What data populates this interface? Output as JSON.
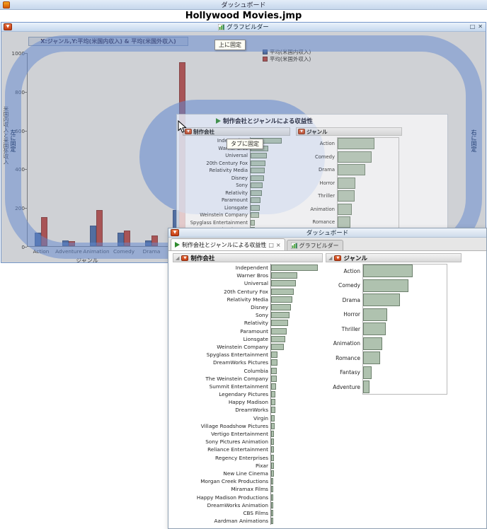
{
  "os": {
    "title": "ダッシュボード"
  },
  "document": {
    "title": "Hollywood Movies.jmp"
  },
  "graph_builder": {
    "window_title": "グラフビルダー",
    "buttons": {
      "maximize": "□",
      "close": "✕"
    }
  },
  "overlay": {
    "dock_top": "上に固定",
    "dock_tab": "タブに固定",
    "dock_left": "左に固定",
    "dock_right": "右に固定"
  },
  "dashboard": {
    "window_title": "ダッシュボード",
    "report_title": "制作会社とジャンルによる収益性",
    "tabs": [
      {
        "label": "制作会社とジャンルによる収益性",
        "active": true,
        "float_button": "□",
        "close_button": "×"
      },
      {
        "label": "グラフビルダー",
        "active": false
      }
    ]
  },
  "chart_data": [
    {
      "type": "bar",
      "title": "X:ジャンル,Y:平均(米国内収入) & 平均(米国外収入)",
      "categories": [
        "Action",
        "Adventure",
        "Animation",
        "Comedy",
        "Drama",
        "Fantasy"
      ],
      "series": [
        {
          "name": "平均(米国内収入)",
          "color": "#3e68b0",
          "border": "#2c4c8a",
          "values": [
            70,
            30,
            105,
            70,
            30,
            185
          ]
        },
        {
          "name": "平均(米国外収入)",
          "color": "#c4403c",
          "border": "#8f2b28",
          "values": [
            150,
            25,
            185,
            80,
            55,
            950
          ]
        }
      ],
      "xlabel": "ジャンル",
      "ylabel": "米国内収入と米国外収入",
      "ylim": [
        0,
        1000
      ],
      "yticks": [
        0,
        200,
        400,
        600,
        800,
        1000
      ],
      "legend_position": "top-center",
      "grid": false
    },
    {
      "type": "bar",
      "orientation": "horizontal",
      "title": "制作会社",
      "categories": [
        "Independent",
        "Warner Bros",
        "Universal",
        "20th Century Fox",
        "Relativity Media",
        "Disney",
        "Sony",
        "Relativity",
        "Paramount",
        "Lionsgate",
        "Weinstein Company",
        "Spyglass Entertainment",
        "DreamWorks Pictures",
        "Columbia",
        "The Weinstein Company",
        "Summit Entertainment",
        "Legendary Pictures",
        "Happy Madison",
        "DreamWorks",
        "Virgin",
        "Village Roadshow Pictures",
        "Vertigo Entertainment",
        "Sony Pictures Animation",
        "Reliance Entertainment",
        "Regency Enterprises",
        "Pixar",
        "New Line Cinema",
        "Morgan Creek Productions",
        "Miramax Films",
        "Happy Madison Productions",
        "DreamWorks Animation",
        "CBS Films",
        "Aardman Animations"
      ],
      "values": [
        64,
        36,
        34,
        31,
        29,
        27,
        25,
        23,
        21,
        19,
        17,
        9,
        9,
        8,
        8,
        7,
        6,
        6,
        6,
        5,
        5,
        4,
        4,
        4,
        4,
        4,
        4,
        3,
        3,
        3,
        3,
        3,
        3
      ]
    },
    {
      "type": "bar",
      "orientation": "horizontal",
      "title": "ジャンル",
      "categories": [
        "Action",
        "Comedy",
        "Drama",
        "Horror",
        "Thriller",
        "Animation",
        "Romance",
        "Fantasy",
        "Adventure"
      ],
      "values": [
        70,
        64,
        52,
        34,
        32,
        27,
        24,
        12,
        9
      ]
    }
  ]
}
